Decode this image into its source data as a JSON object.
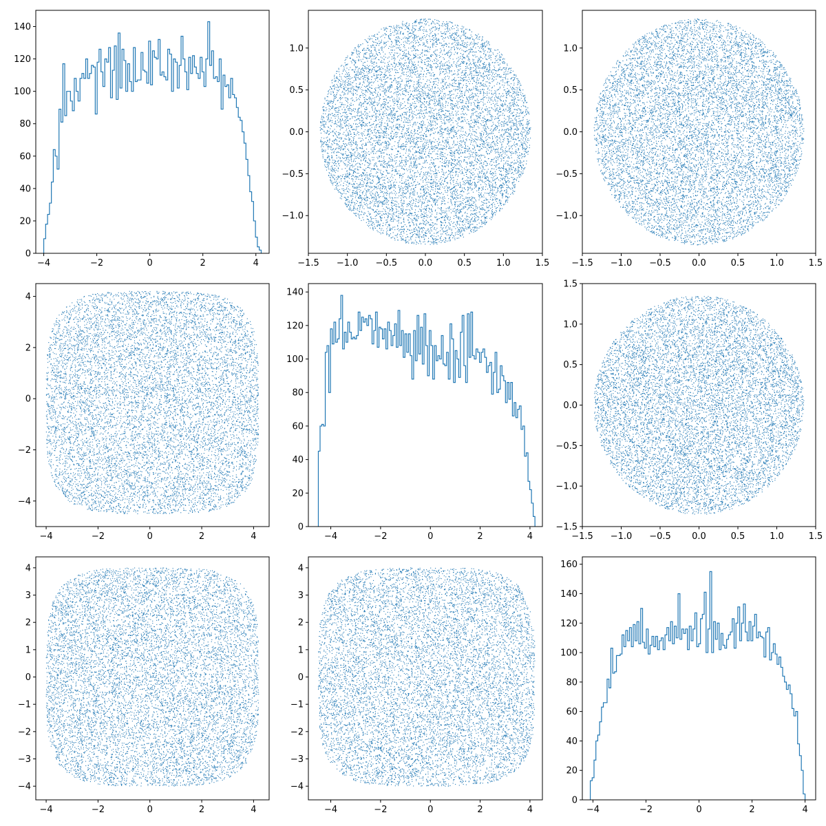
{
  "figure": {
    "layout": "3x3 pair plot",
    "color": "#1f77b4"
  },
  "chart_data": [
    {
      "type": "histogram",
      "row": 0,
      "col": 0,
      "xlim": [
        -4.3,
        4.5
      ],
      "ylim": [
        0,
        150
      ],
      "xticks": [
        -4,
        -2,
        0,
        2,
        4
      ],
      "yticks": [
        0,
        20,
        40,
        60,
        80,
        100,
        120,
        140
      ],
      "bin_range": [
        -4.0,
        4.2
      ],
      "counts": [
        9,
        18,
        24,
        31,
        44,
        64,
        60,
        52,
        89,
        81,
        117,
        85,
        100,
        100,
        94,
        88,
        108,
        100,
        94,
        108,
        111,
        108,
        120,
        108,
        111,
        116,
        115,
        86,
        118,
        126,
        112,
        103,
        120,
        118,
        127,
        96,
        113,
        128,
        95,
        136,
        102,
        126,
        119,
        100,
        117,
        106,
        100,
        127,
        106,
        107,
        107,
        124,
        113,
        112,
        105,
        131,
        104,
        125,
        121,
        120,
        132,
        110,
        112,
        109,
        107,
        126,
        123,
        100,
        120,
        118,
        102,
        116,
        134,
        120,
        112,
        101,
        121,
        111,
        122,
        115,
        111,
        108,
        121,
        112,
        103,
        120,
        143,
        116,
        125,
        108,
        109,
        106,
        120,
        89,
        110,
        103,
        104,
        96,
        108,
        98,
        96,
        90,
        84,
        82,
        75,
        68,
        58,
        48,
        38,
        32,
        20,
        10,
        4,
        2
      ],
      "xlabel": "",
      "ylabel": ""
    },
    {
      "type": "scatter",
      "row": 0,
      "col": 1,
      "xlim": [
        -1.5,
        1.5
      ],
      "ylim": [
        -1.45,
        1.45
      ],
      "xticks": [
        -1.5,
        -1.0,
        -0.5,
        0.0,
        0.5,
        1.0,
        1.5
      ],
      "yticks": [
        -1.0,
        -0.5,
        0.0,
        0.5,
        1.0
      ],
      "distribution": {
        "shape": "disk",
        "center": [
          0.0,
          0.0
        ],
        "radius": 1.35,
        "n_points": 10000,
        "seed": 11
      },
      "xlabel": "",
      "ylabel": ""
    },
    {
      "type": "scatter",
      "row": 0,
      "col": 2,
      "xlim": [
        -1.5,
        1.5
      ],
      "ylim": [
        -1.45,
        1.45
      ],
      "xticks": [
        -1.5,
        -1.0,
        -0.5,
        0.0,
        0.5,
        1.0,
        1.5
      ],
      "yticks": [
        -1.0,
        -0.5,
        0.0,
        0.5,
        1.0
      ],
      "distribution": {
        "shape": "disk",
        "center": [
          0.0,
          0.0
        ],
        "radius": 1.35,
        "n_points": 10000,
        "seed": 12
      },
      "xlabel": "",
      "ylabel": ""
    },
    {
      "type": "scatter",
      "row": 1,
      "col": 0,
      "xlim": [
        -4.4,
        4.6
      ],
      "ylim": [
        -5.0,
        4.5
      ],
      "xticks": [
        -4,
        -2,
        0,
        2,
        4
      ],
      "yticks": [
        -4,
        -2,
        0,
        2,
        4
      ],
      "distribution": {
        "shape": "rounded-square",
        "x_range": [
          -4.0,
          4.2
        ],
        "y_range": [
          -4.5,
          4.2
        ],
        "exponent": 4,
        "n_points": 10000,
        "seed": 21
      },
      "xlabel": "",
      "ylabel": ""
    },
    {
      "type": "histogram",
      "row": 1,
      "col": 1,
      "xlim": [
        -4.9,
        4.5
      ],
      "ylim": [
        0,
        145
      ],
      "xticks": [
        -4,
        -2,
        0,
        2,
        4
      ],
      "yticks": [
        0,
        20,
        40,
        60,
        80,
        100,
        120,
        140
      ],
      "bin_range": [
        -4.5,
        4.2
      ],
      "counts": [
        45,
        60,
        61,
        60,
        104,
        108,
        80,
        118,
        109,
        122,
        110,
        112,
        124,
        138,
        106,
        116,
        110,
        122,
        116,
        112,
        113,
        112,
        114,
        128,
        117,
        125,
        122,
        124,
        120,
        126,
        124,
        109,
        117,
        128,
        107,
        119,
        118,
        112,
        118,
        106,
        122,
        117,
        108,
        114,
        121,
        107,
        129,
        108,
        117,
        101,
        115,
        104,
        115,
        102,
        88,
        117,
        99,
        126,
        103,
        119,
        97,
        127,
        108,
        90,
        117,
        108,
        88,
        108,
        99,
        102,
        100,
        114,
        97,
        96,
        104,
        88,
        121,
        112,
        86,
        105,
        100,
        89,
        116,
        126,
        96,
        86,
        127,
        101,
        128,
        102,
        100,
        106,
        104,
        98,
        104,
        106,
        101,
        92,
        96,
        98,
        79,
        92,
        104,
        80,
        82,
        96,
        90,
        87,
        74,
        86,
        76,
        86,
        66,
        74,
        65,
        70,
        72,
        58,
        60,
        42,
        44,
        27,
        22,
        14,
        6
      ],
      "xlabel": "",
      "ylabel": ""
    },
    {
      "type": "scatter",
      "row": 1,
      "col": 2,
      "xlim": [
        -1.5,
        1.5
      ],
      "ylim": [
        -1.5,
        1.5
      ],
      "xticks": [
        -1.5,
        -1.0,
        -0.5,
        0.0,
        0.5,
        1.0,
        1.5
      ],
      "yticks": [
        -1.5,
        -1.0,
        -0.5,
        0.0,
        0.5,
        1.0,
        1.5
      ],
      "distribution": {
        "shape": "disk",
        "center": [
          0.0,
          0.0
        ],
        "radius": 1.35,
        "n_points": 10000,
        "seed": 23
      },
      "xlabel": "",
      "ylabel": ""
    },
    {
      "type": "scatter",
      "row": 2,
      "col": 0,
      "xlim": [
        -4.4,
        4.6
      ],
      "ylim": [
        -4.5,
        4.4
      ],
      "xticks": [
        -4,
        -2,
        0,
        2,
        4
      ],
      "yticks": [
        -4,
        -3,
        -2,
        -1,
        0,
        1,
        2,
        3,
        4
      ],
      "distribution": {
        "shape": "rounded-square",
        "x_range": [
          -4.0,
          4.2
        ],
        "y_range": [
          -4.0,
          4.0
        ],
        "exponent": 4,
        "n_points": 10000,
        "seed": 31
      },
      "xlabel": "",
      "ylabel": ""
    },
    {
      "type": "scatter",
      "row": 2,
      "col": 1,
      "xlim": [
        -4.9,
        4.5
      ],
      "ylim": [
        -4.5,
        4.4
      ],
      "xticks": [
        -4,
        -2,
        0,
        2,
        4
      ],
      "yticks": [
        -4,
        -3,
        -2,
        -1,
        0,
        1,
        2,
        3,
        4
      ],
      "distribution": {
        "shape": "rounded-square",
        "x_range": [
          -4.5,
          4.2
        ],
        "y_range": [
          -4.0,
          4.0
        ],
        "exponent": 4,
        "n_points": 10000,
        "seed": 32
      },
      "xlabel": "",
      "ylabel": ""
    },
    {
      "type": "histogram",
      "row": 2,
      "col": 2,
      "xlim": [
        -4.4,
        4.4
      ],
      "ylim": [
        0,
        165
      ],
      "xticks": [
        -4,
        -2,
        0,
        2,
        4
      ],
      "yticks": [
        0,
        20,
        40,
        60,
        80,
        100,
        120,
        140,
        160
      ],
      "bin_range": [
        -4.1,
        4.0
      ],
      "counts": [
        13,
        15,
        27,
        40,
        44,
        53,
        63,
        66,
        66,
        82,
        76,
        103,
        86,
        87,
        98,
        98,
        99,
        112,
        104,
        115,
        108,
        117,
        104,
        119,
        108,
        121,
        106,
        130,
        107,
        103,
        116,
        99,
        105,
        111,
        104,
        111,
        102,
        108,
        110,
        102,
        112,
        117,
        108,
        121,
        106,
        118,
        110,
        140,
        109,
        116,
        113,
        116,
        102,
        118,
        108,
        116,
        127,
        104,
        106,
        123,
        126,
        141,
        100,
        116,
        155,
        100,
        121,
        109,
        120,
        102,
        113,
        105,
        103,
        109,
        112,
        114,
        123,
        103,
        120,
        131,
        108,
        120,
        133,
        114,
        108,
        121,
        108,
        118,
        126,
        110,
        114,
        111,
        110,
        97,
        114,
        117,
        95,
        100,
        106,
        99,
        92,
        97,
        90,
        84,
        80,
        75,
        78,
        72,
        62,
        57,
        60,
        38,
        30,
        20,
        4
      ],
      "xlabel": "",
      "ylabel": ""
    }
  ]
}
